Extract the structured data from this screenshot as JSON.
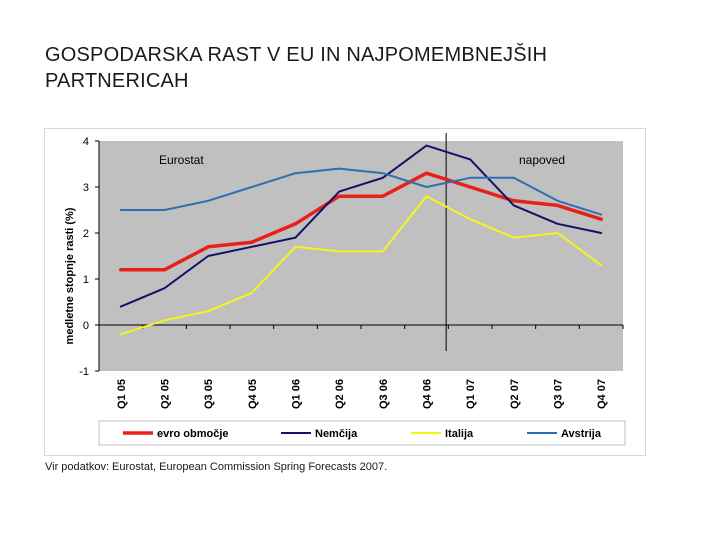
{
  "slide": {
    "title_line1": "GOSPODARSKA RAST V EU IN NAJPOMEMBNEJŠIH",
    "title_line2": "PARTNERICAH",
    "source": "Vir podatkov: Eurostat, European Commission Spring Forecasts 2007."
  },
  "chart_data": {
    "type": "line",
    "ylabel": "medletne stopnje rasti (%)",
    "xlabel": "",
    "ylim": [
      -1,
      4
    ],
    "yticks": [
      -1,
      0,
      1,
      2,
      3,
      4
    ],
    "grid": false,
    "legend_position": "bottom",
    "categories": [
      "Q1 05",
      "Q2 05",
      "Q3 05",
      "Q4 05",
      "Q1 06",
      "Q2 06",
      "Q3 06",
      "Q4 06",
      "Q1 07",
      "Q2 07",
      "Q3 07",
      "Q4 07"
    ],
    "annotations": {
      "left_region": "Eurostat",
      "right_region": "napoved",
      "divider_between": [
        "Q4 06",
        "Q1 07"
      ]
    },
    "plot_background": "#c0c0c0",
    "series": [
      {
        "name": "evro območje",
        "color": "#e8201a",
        "bold": true,
        "values": [
          1.2,
          1.2,
          1.7,
          1.8,
          2.2,
          2.8,
          2.8,
          3.3,
          3.0,
          2.7,
          2.6,
          2.3
        ]
      },
      {
        "name": "Nemčija",
        "color": "#12126b",
        "bold": false,
        "values": [
          0.4,
          0.8,
          1.5,
          1.7,
          1.9,
          2.9,
          3.2,
          3.9,
          3.6,
          2.6,
          2.2,
          2.0
        ]
      },
      {
        "name": "Italija",
        "color": "#f5f51e",
        "bold": false,
        "values": [
          -0.2,
          0.1,
          0.3,
          0.7,
          1.7,
          1.6,
          1.6,
          2.8,
          2.3,
          1.9,
          2.0,
          1.3
        ]
      },
      {
        "name": "Avstrija",
        "color": "#2d6fb5",
        "bold": false,
        "values": [
          2.5,
          2.5,
          2.7,
          3.0,
          3.3,
          3.4,
          3.3,
          3.0,
          3.2,
          3.2,
          2.7,
          2.4
        ]
      }
    ]
  }
}
